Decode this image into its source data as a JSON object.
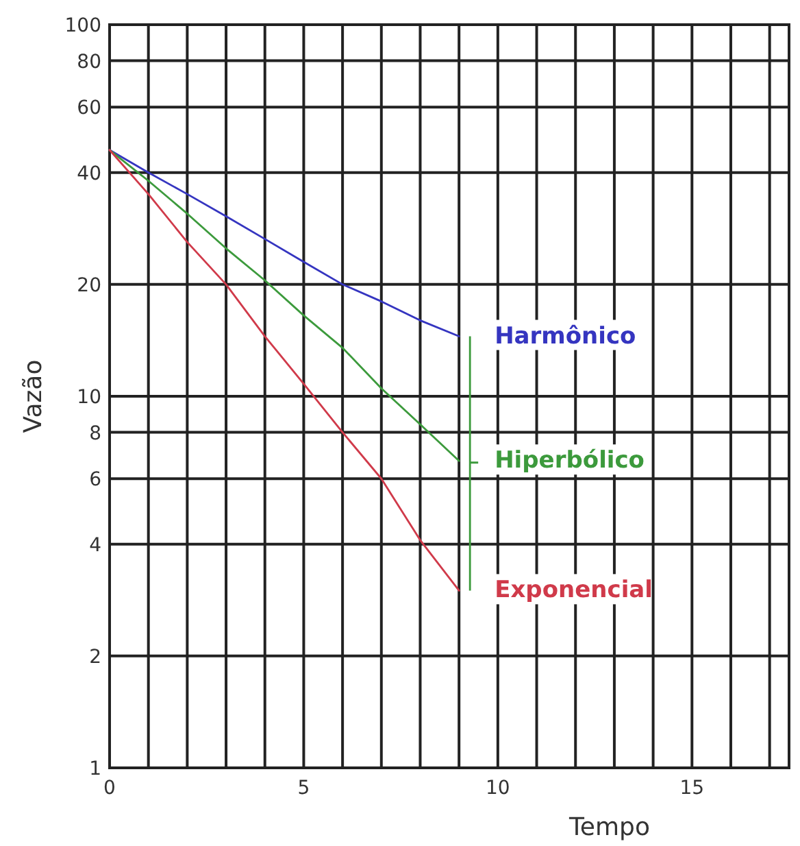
{
  "chart_data": {
    "type": "line",
    "xlabel": "Tempo",
    "ylabel": "Vazão",
    "log": "y",
    "grid": true,
    "legend": "right",
    "marker": "none",
    "line_style": "solid",
    "x": [
      0,
      1,
      2,
      3,
      4,
      5,
      6,
      7,
      8,
      9
    ],
    "xlim": [
      0,
      17.5
    ],
    "xticks": [
      0,
      {
        "value": 1,
        "label": null
      },
      {
        "value": 2,
        "label": null
      },
      {
        "value": 3,
        "label": null
      },
      {
        "value": 4,
        "label": null
      },
      5,
      {
        "value": 6,
        "label": null
      },
      {
        "value": 7,
        "label": null
      },
      {
        "value": 8,
        "label": null
      },
      {
        "value": 9,
        "label": null
      },
      10,
      {
        "value": 11,
        "label": null
      },
      {
        "value": 12,
        "label": null
      },
      {
        "value": 13,
        "label": null
      },
      {
        "value": 14,
        "label": null
      },
      15,
      {
        "value": 16,
        "label": null
      },
      {
        "value": 17,
        "label": null
      }
    ],
    "ylim": [
      1,
      100
    ],
    "yticks": [
      1,
      2,
      4,
      6,
      8,
      10,
      20,
      40,
      60,
      80,
      100
    ],
    "series": [
      {
        "name": "Harmônico",
        "color": "#3535c0",
        "values": [
          46,
          40,
          35,
          30.5,
          26.5,
          23,
          20,
          18,
          16,
          14.5
        ]
      },
      {
        "name": "Hiperbólico",
        "color": "#3c9a3c",
        "values": [
          46,
          38,
          31,
          25,
          20.5,
          16.5,
          13.5,
          10.5,
          8.4,
          6.7
        ]
      },
      {
        "name": "Exponencial",
        "color": "#d03a4a",
        "values": [
          46,
          35,
          26,
          20,
          14.5,
          10.8,
          8,
          6,
          4.1,
          3
        ]
      }
    ]
  }
}
